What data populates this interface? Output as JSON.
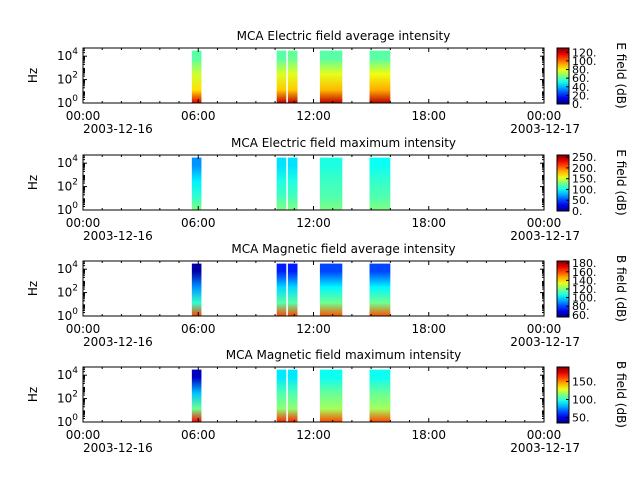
{
  "chart_data": [
    {
      "type": "heatmap",
      "title": "MCA  Electric field average intensity",
      "ylabel": "Hz",
      "colorbar_label": "E field (dB)",
      "colorbar_ticks": [
        "0.",
        "20.",
        "40.",
        "60.",
        "80.",
        "100.",
        "120."
      ],
      "colorbar_range": [
        0,
        130
      ],
      "xlim": [
        "2003-12-16 00:00",
        "2003-12-17 00:00"
      ],
      "ylim": [
        1,
        50000
      ],
      "yscale": "log",
      "ytick_exponents": [
        "0",
        "2",
        "4"
      ],
      "xticks": [
        "00:00",
        "06:00",
        "12:00",
        "18:00",
        "00:00"
      ],
      "date_labels": [
        "2003-12-16",
        "2003-12-17"
      ],
      "blocks": [
        {
          "start": "05:40",
          "end": "06:10",
          "low": 60,
          "high": 85,
          "peak": 118
        },
        {
          "start": "10:05",
          "end": "10:35",
          "low": 60,
          "high": 88,
          "peak": 122
        },
        {
          "start": "10:40",
          "end": "11:10",
          "low": 62,
          "high": 88,
          "peak": 122
        },
        {
          "start": "12:20",
          "end": "13:30",
          "low": 60,
          "high": 90,
          "peak": 122
        },
        {
          "start": "14:55",
          "end": "16:00",
          "low": 60,
          "high": 92,
          "peak": 122
        }
      ]
    },
    {
      "type": "heatmap",
      "title": "MCA  Electric field maximum intensity",
      "ylabel": "Hz",
      "colorbar_label": "E field (dB)",
      "colorbar_ticks": [
        "0.",
        "50.",
        "100.",
        "150.",
        "200.",
        "250."
      ],
      "colorbar_range": [
        0,
        260
      ],
      "xlim": [
        "2003-12-16 00:00",
        "2003-12-17 00:00"
      ],
      "ylim": [
        1,
        50000
      ],
      "yscale": "log",
      "ytick_exponents": [
        "0",
        "2",
        "4"
      ],
      "xticks": [
        "00:00",
        "06:00",
        "12:00",
        "18:00",
        "00:00"
      ],
      "date_labels": [
        "2003-12-16",
        "2003-12-17"
      ],
      "blocks": [
        {
          "start": "05:40",
          "end": "06:10",
          "low": 70,
          "high": 110,
          "peak": 130
        },
        {
          "start": "10:05",
          "end": "10:35",
          "low": 90,
          "high": 115,
          "peak": 130
        },
        {
          "start": "10:40",
          "end": "11:10",
          "low": 90,
          "high": 115,
          "peak": 130
        },
        {
          "start": "12:20",
          "end": "13:30",
          "low": 105,
          "high": 118,
          "peak": 130
        },
        {
          "start": "14:55",
          "end": "16:00",
          "low": 100,
          "high": 118,
          "peak": 130
        }
      ]
    },
    {
      "type": "heatmap",
      "title": "MCA  Magnetic field average intensity",
      "ylabel": "Hz",
      "colorbar_label": "B field (dB)",
      "colorbar_ticks": [
        "60.",
        "80.",
        "100.",
        "120.",
        "140.",
        "160.",
        "180."
      ],
      "colorbar_range": [
        55,
        185
      ],
      "xlim": [
        "2003-12-16 00:00",
        "2003-12-17 00:00"
      ],
      "ylim": [
        1,
        50000
      ],
      "yscale": "log",
      "ytick_exponents": [
        "0",
        "2",
        "4"
      ],
      "xticks": [
        "00:00",
        "06:00",
        "12:00",
        "18:00",
        "00:00"
      ],
      "date_labels": [
        "2003-12-16",
        "2003-12-17"
      ],
      "blocks": [
        {
          "start": "05:40",
          "end": "06:10",
          "low": 60,
          "high": 110,
          "peak": 160
        },
        {
          "start": "10:05",
          "end": "10:35",
          "low": 75,
          "high": 115,
          "peak": 160
        },
        {
          "start": "10:40",
          "end": "11:10",
          "low": 75,
          "high": 115,
          "peak": 160
        },
        {
          "start": "12:20",
          "end": "13:30",
          "low": 80,
          "high": 118,
          "peak": 158
        },
        {
          "start": "14:55",
          "end": "16:00",
          "low": 80,
          "high": 118,
          "peak": 158
        }
      ]
    },
    {
      "type": "heatmap",
      "title": "MCA  Magnetic field maximum intensity",
      "ylabel": "Hz",
      "colorbar_label": "B field (dB)",
      "colorbar_ticks": [
        "50.",
        "100.",
        "150."
      ],
      "colorbar_range": [
        35,
        190
      ],
      "xlim": [
        "2003-12-16 00:00",
        "2003-12-17 00:00"
      ],
      "ylim": [
        1,
        50000
      ],
      "yscale": "log",
      "ytick_exponents": [
        "0",
        "2",
        "4"
      ],
      "xticks": [
        "00:00",
        "06:00",
        "12:00",
        "18:00",
        "00:00"
      ],
      "date_labels": [
        "2003-12-16",
        "2003-12-17"
      ],
      "blocks": [
        {
          "start": "05:40",
          "end": "06:10",
          "low": 45,
          "high": 110,
          "peak": 170
        },
        {
          "start": "10:05",
          "end": "10:35",
          "low": 90,
          "high": 115,
          "peak": 165
        },
        {
          "start": "10:40",
          "end": "11:10",
          "low": 90,
          "high": 115,
          "peak": 165
        },
        {
          "start": "12:20",
          "end": "13:30",
          "low": 95,
          "high": 118,
          "peak": 160
        },
        {
          "start": "14:55",
          "end": "16:00",
          "low": 95,
          "high": 118,
          "peak": 160
        }
      ]
    }
  ]
}
